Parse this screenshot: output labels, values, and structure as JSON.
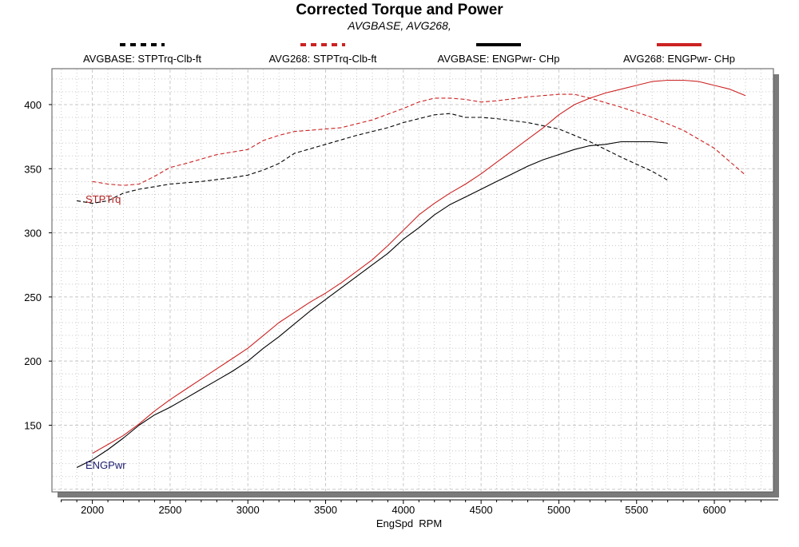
{
  "chart_data": {
    "type": "line",
    "title": "Corrected Torque and Power",
    "subtitle": "AVGBASE, AVG268,",
    "xlabel": "EngSpd  RPM",
    "ylabel": "",
    "xlim": [
      1740,
      6380
    ],
    "ylim": [
      98,
      428
    ],
    "x_ticks": [
      "2000",
      "2500",
      "3000",
      "3500",
      "4000",
      "4500",
      "5000",
      "5500",
      "6000"
    ],
    "y_ticks": [
      "150",
      "200",
      "250",
      "300",
      "350",
      "400"
    ],
    "grid": true,
    "legend_position": "top",
    "axis_annotations": {
      "torque": "STPTrq",
      "power": "ENGPwr"
    },
    "series": [
      {
        "name": "AVGBASE: STPTrq-Clb-ft",
        "color": "#000000",
        "dash": "dashed",
        "x": [
          1900,
          2000,
          2100,
          2200,
          2300,
          2400,
          2500,
          2700,
          2900,
          3000,
          3100,
          3200,
          3300,
          3500,
          3700,
          3900,
          4000,
          4100,
          4200,
          4300,
          4400,
          4500,
          4600,
          4800,
          5000,
          5200,
          5400,
          5600,
          5700
        ],
        "values": [
          325,
          323,
          325,
          331,
          334,
          336,
          338,
          340,
          343,
          345,
          349,
          354,
          362,
          369,
          376,
          382,
          386,
          389,
          392,
          393,
          390,
          390,
          389,
          386,
          381,
          371,
          359,
          348,
          341
        ]
      },
      {
        "name": "AVG268: STPTrq-Clb-ft",
        "color": "#cc2222",
        "dash": "dashed",
        "x": [
          2000,
          2100,
          2200,
          2300,
          2400,
          2500,
          2600,
          2800,
          3000,
          3100,
          3200,
          3300,
          3400,
          3600,
          3800,
          4000,
          4100,
          4200,
          4300,
          4400,
          4500,
          4600,
          4800,
          5000,
          5100,
          5200,
          5400,
          5600,
          5800,
          6000,
          6200
        ],
        "values": [
          340,
          338,
          337,
          338,
          344,
          351,
          354,
          361,
          365,
          372,
          376,
          379,
          380,
          382,
          388,
          397,
          402,
          405,
          405,
          404,
          402,
          403,
          406,
          408,
          408,
          405,
          398,
          390,
          380,
          366,
          345
        ]
      },
      {
        "name": "AVGBASE: ENGPwr- CHp",
        "color": "#000000",
        "dash": "solid",
        "x": [
          1900,
          2000,
          2100,
          2200,
          2300,
          2400,
          2500,
          2600,
          2700,
          2800,
          2900,
          3000,
          3100,
          3200,
          3300,
          3400,
          3500,
          3600,
          3700,
          3800,
          3900,
          4000,
          4100,
          4200,
          4300,
          4400,
          4500,
          4600,
          4700,
          4800,
          4900,
          5000,
          5100,
          5200,
          5300,
          5400,
          5500,
          5600,
          5700
        ],
        "values": [
          117,
          123,
          131,
          140,
          150,
          158,
          164,
          171,
          178,
          185,
          192,
          200,
          210,
          219,
          229,
          239,
          248,
          257,
          266,
          275,
          284,
          295,
          304,
          314,
          322,
          328,
          334,
          340,
          346,
          352,
          357,
          361,
          365,
          368,
          369,
          371,
          371,
          371,
          370
        ]
      },
      {
        "name": "AVG268: ENGPwr- CHp",
        "color": "#cc2222",
        "dash": "solid",
        "x": [
          2000,
          2100,
          2200,
          2300,
          2400,
          2500,
          2600,
          2700,
          2800,
          2900,
          3000,
          3100,
          3200,
          3300,
          3400,
          3500,
          3600,
          3700,
          3800,
          3900,
          4000,
          4100,
          4200,
          4300,
          4400,
          4500,
          4600,
          4700,
          4800,
          4900,
          5000,
          5100,
          5200,
          5300,
          5400,
          5500,
          5600,
          5700,
          5800,
          5900,
          6000,
          6100,
          6200
        ],
        "values": [
          128,
          135,
          142,
          151,
          161,
          170,
          178,
          186,
          194,
          202,
          210,
          220,
          230,
          238,
          246,
          253,
          261,
          270,
          279,
          290,
          302,
          314,
          323,
          331,
          338,
          346,
          355,
          364,
          373,
          382,
          392,
          400,
          405,
          409,
          412,
          415,
          418,
          419,
          419,
          418,
          415,
          412,
          407
        ]
      }
    ]
  }
}
